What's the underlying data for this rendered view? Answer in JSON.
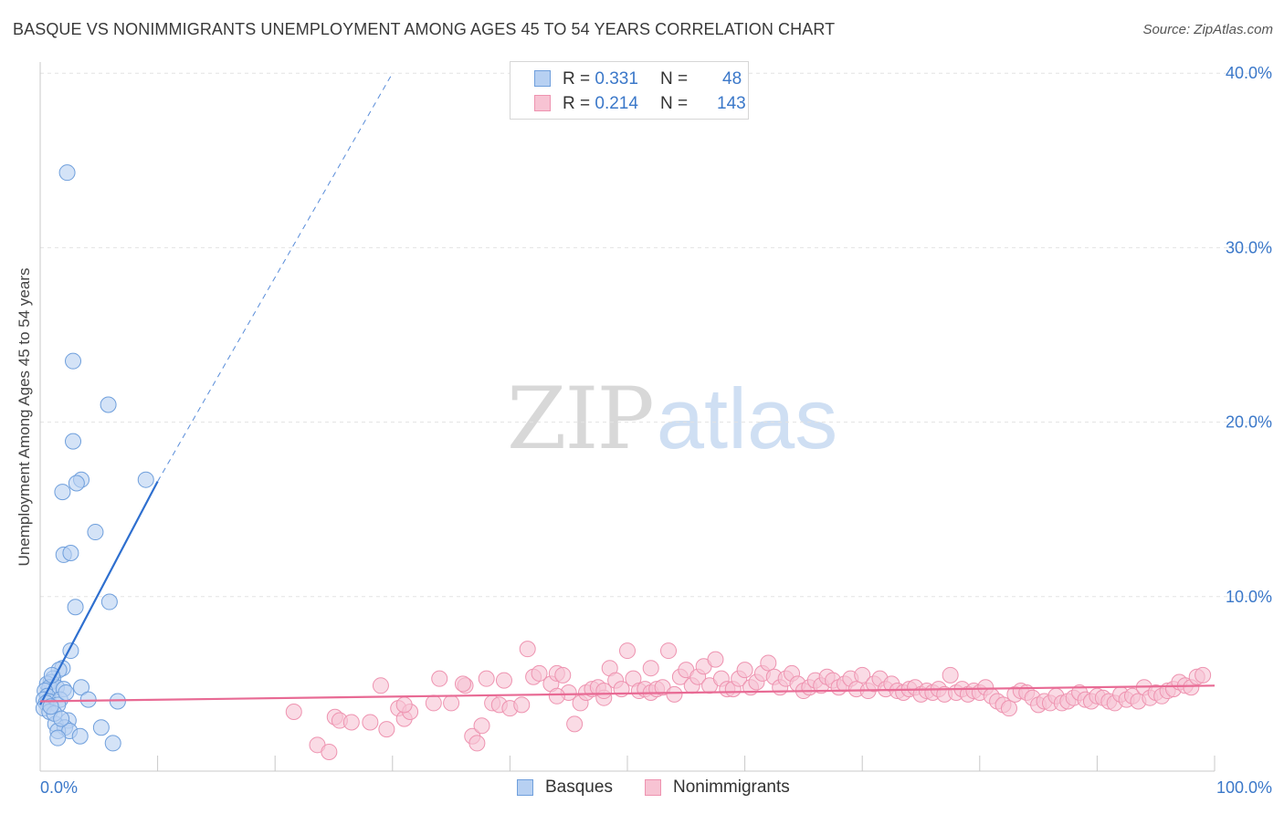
{
  "title": "BASQUE VS NONIMMIGRANTS UNEMPLOYMENT AMONG AGES 45 TO 54 YEARS CORRELATION CHART",
  "source": "Source: ZipAtlas.com",
  "watermark": {
    "zip": "ZIP",
    "atlas": "atlas"
  },
  "legend": {
    "basques": {
      "r_label": "R =",
      "r_value": "0.331",
      "n_label": "N =",
      "n_value": "48"
    },
    "nonimmigrants": {
      "r_label": "R =",
      "r_value": "0.214",
      "n_label": "N =",
      "n_value": "143"
    }
  },
  "bottom_legend": {
    "basques": "Basques",
    "nonimmigrants": "Nonimmigrants"
  },
  "colors": {
    "basques_fill": "#b7d0f2",
    "basques_stroke": "#6f9fdc",
    "basques_line": "#2e6fcf",
    "nonimmigrants_fill": "#f7c3d3",
    "nonimmigrants_stroke": "#ee93b0",
    "nonimmigrants_line": "#e86a94",
    "tick_label": "#3b78c9",
    "grid": "#e3e3e3"
  },
  "chart_data": {
    "type": "scatter",
    "title": "BASQUE VS NONIMMIGRANTS UNEMPLOYMENT AMONG AGES 45 TO 54 YEARS CORRELATION CHART",
    "xlabel": "",
    "ylabel": "Unemployment Among Ages 45 to 54 years",
    "xlim": [
      0,
      100
    ],
    "ylim": [
      0,
      40
    ],
    "x_tick_labels": [
      "0.0%",
      "100.0%"
    ],
    "y_ticks": [
      10,
      20,
      30,
      40
    ],
    "y_tick_labels": [
      "10.0%",
      "20.0%",
      "30.0%",
      "40.0%"
    ],
    "series": [
      {
        "name": "Basques",
        "r": 0.331,
        "n": 48,
        "trend": {
          "x0": 0.0,
          "y0": 3.8,
          "x1": 10.0,
          "y1": 16.6,
          "dashed_to_x": 30.0,
          "dashed_to_y": 40.0
        },
        "points": [
          [
            2.3,
            34.3
          ],
          [
            2.8,
            23.5
          ],
          [
            5.8,
            21.0
          ],
          [
            2.8,
            18.9
          ],
          [
            9.0,
            16.7
          ],
          [
            3.5,
            16.7
          ],
          [
            3.1,
            16.5
          ],
          [
            1.9,
            16.0
          ],
          [
            4.7,
            13.7
          ],
          [
            2.0,
            12.4
          ],
          [
            2.6,
            12.5
          ],
          [
            5.9,
            9.7
          ],
          [
            3.0,
            9.4
          ],
          [
            2.6,
            6.9
          ],
          [
            1.9,
            5.9
          ],
          [
            1.6,
            5.8
          ],
          [
            1.1,
            5.3
          ],
          [
            0.9,
            5.1
          ],
          [
            0.6,
            5.0
          ],
          [
            0.8,
            4.8
          ],
          [
            1.4,
            4.8
          ],
          [
            3.5,
            4.8
          ],
          [
            2.0,
            4.7
          ],
          [
            0.4,
            4.6
          ],
          [
            0.6,
            4.3
          ],
          [
            0.3,
            4.1
          ],
          [
            0.7,
            4.0
          ],
          [
            1.7,
            4.1
          ],
          [
            4.1,
            4.1
          ],
          [
            6.6,
            4.0
          ],
          [
            0.5,
            3.9
          ],
          [
            1.5,
            3.8
          ],
          [
            0.3,
            3.6
          ],
          [
            0.8,
            3.4
          ],
          [
            2.4,
            2.9
          ],
          [
            1.3,
            2.7
          ],
          [
            2.1,
            2.5
          ],
          [
            1.5,
            2.3
          ],
          [
            2.5,
            2.3
          ],
          [
            5.2,
            2.5
          ],
          [
            3.4,
            2.0
          ],
          [
            1.5,
            1.9
          ],
          [
            6.2,
            1.6
          ],
          [
            1.2,
            3.3
          ],
          [
            0.9,
            3.7
          ],
          [
            2.2,
            4.5
          ],
          [
            1.0,
            5.5
          ],
          [
            1.8,
            3.0
          ]
        ]
      },
      {
        "name": "Nonimmigrants",
        "r": 0.214,
        "n": 143,
        "trend": {
          "x0": 0.0,
          "y0": 4.0,
          "x1": 100.0,
          "y1": 4.9
        },
        "points": [
          [
            21.6,
            3.4
          ],
          [
            23.6,
            1.5
          ],
          [
            24.6,
            1.1
          ],
          [
            25.1,
            3.1
          ],
          [
            25.5,
            2.9
          ],
          [
            26.5,
            2.8
          ],
          [
            28.1,
            2.8
          ],
          [
            29.0,
            4.9
          ],
          [
            29.5,
            2.4
          ],
          [
            30.5,
            3.6
          ],
          [
            31.0,
            3.0
          ],
          [
            31.5,
            3.4
          ],
          [
            33.5,
            3.9
          ],
          [
            34.0,
            5.3
          ],
          [
            35.0,
            3.9
          ],
          [
            36.2,
            4.9
          ],
          [
            36.8,
            2.0
          ],
          [
            37.2,
            1.6
          ],
          [
            37.6,
            2.6
          ],
          [
            38.0,
            5.3
          ],
          [
            38.5,
            3.9
          ],
          [
            39.1,
            3.8
          ],
          [
            39.5,
            5.2
          ],
          [
            40.0,
            3.6
          ],
          [
            41.0,
            3.8
          ],
          [
            41.5,
            7.0
          ],
          [
            42.0,
            5.4
          ],
          [
            42.5,
            5.6
          ],
          [
            43.5,
            5.0
          ],
          [
            44.0,
            5.6
          ],
          [
            44.5,
            5.5
          ],
          [
            45.0,
            4.5
          ],
          [
            45.5,
            2.7
          ],
          [
            46.0,
            3.9
          ],
          [
            46.5,
            4.5
          ],
          [
            47.0,
            4.7
          ],
          [
            47.5,
            4.8
          ],
          [
            48.0,
            4.2
          ],
          [
            48.5,
            5.9
          ],
          [
            49.0,
            5.2
          ],
          [
            49.5,
            4.7
          ],
          [
            50.0,
            6.9
          ],
          [
            50.5,
            5.3
          ],
          [
            51.0,
            4.6
          ],
          [
            51.5,
            4.7
          ],
          [
            52.0,
            4.5
          ],
          [
            52.5,
            4.7
          ],
          [
            53.0,
            4.8
          ],
          [
            53.5,
            6.9
          ],
          [
            54.0,
            4.4
          ],
          [
            54.5,
            5.4
          ],
          [
            55.0,
            5.8
          ],
          [
            55.5,
            4.9
          ],
          [
            56.0,
            5.4
          ],
          [
            56.5,
            6.0
          ],
          [
            57.0,
            4.9
          ],
          [
            57.5,
            6.4
          ],
          [
            58.0,
            5.3
          ],
          [
            58.5,
            4.7
          ],
          [
            59.0,
            4.7
          ],
          [
            59.5,
            5.3
          ],
          [
            60.0,
            5.8
          ],
          [
            60.5,
            4.8
          ],
          [
            61.0,
            5.1
          ],
          [
            61.5,
            5.6
          ],
          [
            62.0,
            6.2
          ],
          [
            62.5,
            5.4
          ],
          [
            63.0,
            4.8
          ],
          [
            63.5,
            5.3
          ],
          [
            64.0,
            5.6
          ],
          [
            64.5,
            5.0
          ],
          [
            65.0,
            4.6
          ],
          [
            65.5,
            4.8
          ],
          [
            66.0,
            5.2
          ],
          [
            66.5,
            4.9
          ],
          [
            67.0,
            5.4
          ],
          [
            67.5,
            5.2
          ],
          [
            68.0,
            4.8
          ],
          [
            68.5,
            5.0
          ],
          [
            69.0,
            5.3
          ],
          [
            69.5,
            4.7
          ],
          [
            70.0,
            5.5
          ],
          [
            70.5,
            4.6
          ],
          [
            71.0,
            5.0
          ],
          [
            71.5,
            5.3
          ],
          [
            72.0,
            4.7
          ],
          [
            72.5,
            5.0
          ],
          [
            73.0,
            4.6
          ],
          [
            73.5,
            4.5
          ],
          [
            74.0,
            4.7
          ],
          [
            74.5,
            4.8
          ],
          [
            75.0,
            4.4
          ],
          [
            75.5,
            4.6
          ],
          [
            76.0,
            4.5
          ],
          [
            76.5,
            4.7
          ],
          [
            77.0,
            4.4
          ],
          [
            77.5,
            5.5
          ],
          [
            78.0,
            4.5
          ],
          [
            78.5,
            4.7
          ],
          [
            79.0,
            4.4
          ],
          [
            79.5,
            4.6
          ],
          [
            80.0,
            4.5
          ],
          [
            80.5,
            4.8
          ],
          [
            81.0,
            4.3
          ],
          [
            81.5,
            4.0
          ],
          [
            82.0,
            3.8
          ],
          [
            82.5,
            3.6
          ],
          [
            83.0,
            4.4
          ],
          [
            83.5,
            4.6
          ],
          [
            84.0,
            4.5
          ],
          [
            84.5,
            4.2
          ],
          [
            85.0,
            3.8
          ],
          [
            85.5,
            4.0
          ],
          [
            86.0,
            3.9
          ],
          [
            86.5,
            4.3
          ],
          [
            87.0,
            3.9
          ],
          [
            87.5,
            4.0
          ],
          [
            88.0,
            4.2
          ],
          [
            88.5,
            4.5
          ],
          [
            89.0,
            4.1
          ],
          [
            89.5,
            4.0
          ],
          [
            90.0,
            4.3
          ],
          [
            90.5,
            4.2
          ],
          [
            91.0,
            4.0
          ],
          [
            91.5,
            3.9
          ],
          [
            92.0,
            4.4
          ],
          [
            92.5,
            4.1
          ],
          [
            93.0,
            4.3
          ],
          [
            93.5,
            4.0
          ],
          [
            94.0,
            4.8
          ],
          [
            94.5,
            4.2
          ],
          [
            95.0,
            4.5
          ],
          [
            95.5,
            4.3
          ],
          [
            96.0,
            4.6
          ],
          [
            96.5,
            4.7
          ],
          [
            97.0,
            5.1
          ],
          [
            97.5,
            4.9
          ],
          [
            98.0,
            4.8
          ],
          [
            98.5,
            5.4
          ],
          [
            99.0,
            5.5
          ],
          [
            31.0,
            3.8
          ],
          [
            36.0,
            5.0
          ],
          [
            44.0,
            4.3
          ],
          [
            48.0,
            4.6
          ],
          [
            52.0,
            5.9
          ]
        ]
      }
    ]
  }
}
